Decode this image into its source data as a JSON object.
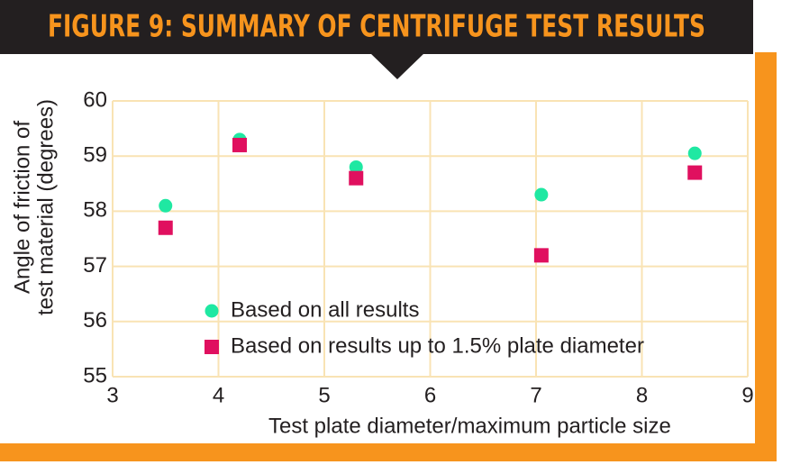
{
  "chart_data": {
    "type": "scatter",
    "title": "FIGURE 9: SUMMARY OF CENTRIFUGE TEST RESULTS",
    "xlabel": "Test plate diameter/maximum particle size",
    "ylabel": [
      "Angle of friction of",
      "test material (degrees)"
    ],
    "xlim": [
      3,
      9
    ],
    "xticks": [
      3,
      4,
      5,
      6,
      7,
      8,
      9
    ],
    "ylim": [
      55,
      60
    ],
    "yticks": [
      55,
      56,
      57,
      58,
      59,
      60
    ],
    "grid": true,
    "legend": "lower left",
    "series": [
      {
        "name": "Based on all results",
        "color": "#1fe8a2",
        "marker": "circle",
        "x": [
          3.5,
          4.2,
          5.3,
          7.05,
          8.5
        ],
        "values": [
          58.1,
          59.3,
          58.8,
          58.3,
          59.05
        ]
      },
      {
        "name": "Based on results up to 1.5% plate diameter",
        "color": "#e0105f",
        "marker": "square",
        "x": [
          3.5,
          4.2,
          5.3,
          7.05,
          8.5
        ],
        "values": [
          57.7,
          59.2,
          58.6,
          57.2,
          58.7
        ]
      }
    ]
  }
}
